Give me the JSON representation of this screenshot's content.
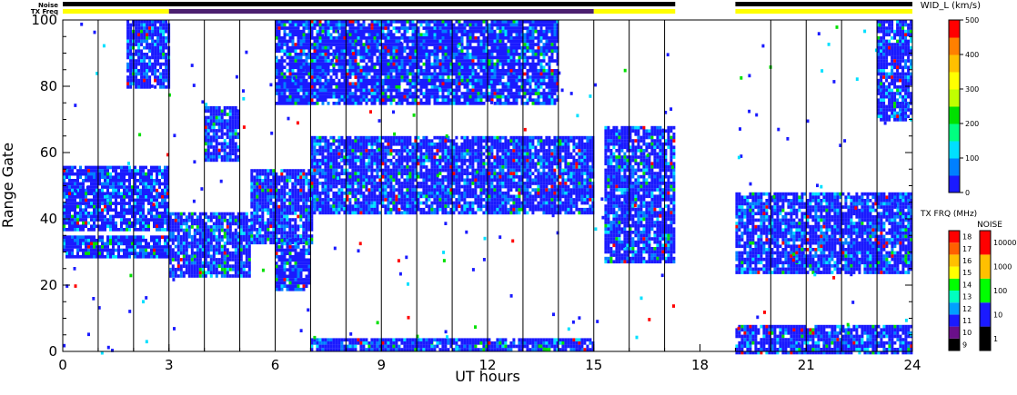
{
  "chart_data": {
    "type": "heatmap",
    "title": "",
    "xlabel": "UT hours",
    "ylabel": "Range Gate",
    "xlim": [
      0,
      24
    ],
    "ylim": [
      0,
      100
    ],
    "x_ticks": [
      "0",
      "3",
      "6",
      "9",
      "12",
      "15",
      "18",
      "21",
      "24"
    ],
    "y_ticks": [
      "0",
      "20",
      "40",
      "60",
      "80",
      "100"
    ],
    "grid_vertical_hours": [
      1,
      2,
      3,
      4,
      5,
      6,
      7,
      8,
      9,
      10,
      11,
      12,
      13,
      14,
      15,
      16,
      17,
      20,
      21,
      22,
      23
    ],
    "data_gap_hours": [
      17.3,
      19.0
    ],
    "bands": [
      {
        "x": [
          0,
          3
        ],
        "y": [
          37,
          56
        ]
      },
      {
        "x": [
          0,
          3
        ],
        "y": [
          29,
          35
        ]
      },
      {
        "x": [
          3,
          5.3
        ],
        "y": [
          23,
          42
        ]
      },
      {
        "x": [
          5.3,
          7
        ],
        "y": [
          33,
          55
        ]
      },
      {
        "x": [
          7,
          15
        ],
        "y": [
          42,
          65
        ]
      },
      {
        "x": [
          6,
          7
        ],
        "y": [
          19,
          34
        ]
      },
      {
        "x": [
          4,
          5
        ],
        "y": [
          58,
          74
        ]
      },
      {
        "x": [
          7,
          15
        ],
        "y": [
          1,
          4
        ]
      },
      {
        "x": [
          15.3,
          17.3
        ],
        "y": [
          27,
          68
        ]
      },
      {
        "x": [
          19,
          24
        ],
        "y": [
          24,
          48
        ]
      },
      {
        "x": [
          19,
          24
        ],
        "y": [
          0,
          8
        ]
      },
      {
        "x": [
          1.8,
          3
        ],
        "y": [
          80,
          100
        ]
      },
      {
        "x": [
          6,
          14
        ],
        "y": [
          75,
          100
        ]
      },
      {
        "x": [
          23,
          24
        ],
        "y": [
          70,
          100
        ]
      }
    ],
    "status_bars": {
      "noise_label": "Noise",
      "txfreq_label": "TX Freq",
      "noise_segments": [
        [
          0,
          17.3
        ],
        [
          19,
          24
        ]
      ],
      "txfreq_segments": [
        {
          "x": [
            0,
            3
          ],
          "color": "#ffff00"
        },
        {
          "x": [
            3,
            15
          ],
          "color": "#4b1f6f"
        },
        {
          "x": [
            15,
            17.3
          ],
          "color": "#ffff00"
        },
        {
          "x": [
            19,
            24
          ],
          "color": "#ffff00"
        }
      ]
    },
    "colorbars": [
      {
        "label": "WID_L (km/s)",
        "ticks": [
          "0",
          "100",
          "200",
          "300",
          "400",
          "500"
        ],
        "range": [
          0,
          500
        ],
        "colors": [
          "#1a1aff",
          "#0080ff",
          "#00e0ff",
          "#00ff80",
          "#00e000",
          "#c0ff00",
          "#ffff00",
          "#ffc000",
          "#ff8000",
          "#ff0000"
        ]
      },
      {
        "label": "TX FRQ (MHz)",
        "ticks": [
          "9",
          "10",
          "11",
          "12",
          "13",
          "14",
          "15",
          "16",
          "17",
          "18"
        ],
        "colors": [
          "#000000",
          "#6a0f8a",
          "#1a1aff",
          "#00a0ff",
          "#00ffc0",
          "#00ff00",
          "#ffff00",
          "#ffc000",
          "#ff6000",
          "#ff0000"
        ]
      },
      {
        "label": "NOISE",
        "ticks": [
          "1",
          "10",
          "100",
          "1000",
          "10000"
        ],
        "colors": [
          "#000000",
          "#1a1aff",
          "#00ff00",
          "#ffc000",
          "#ff0000"
        ]
      }
    ]
  }
}
